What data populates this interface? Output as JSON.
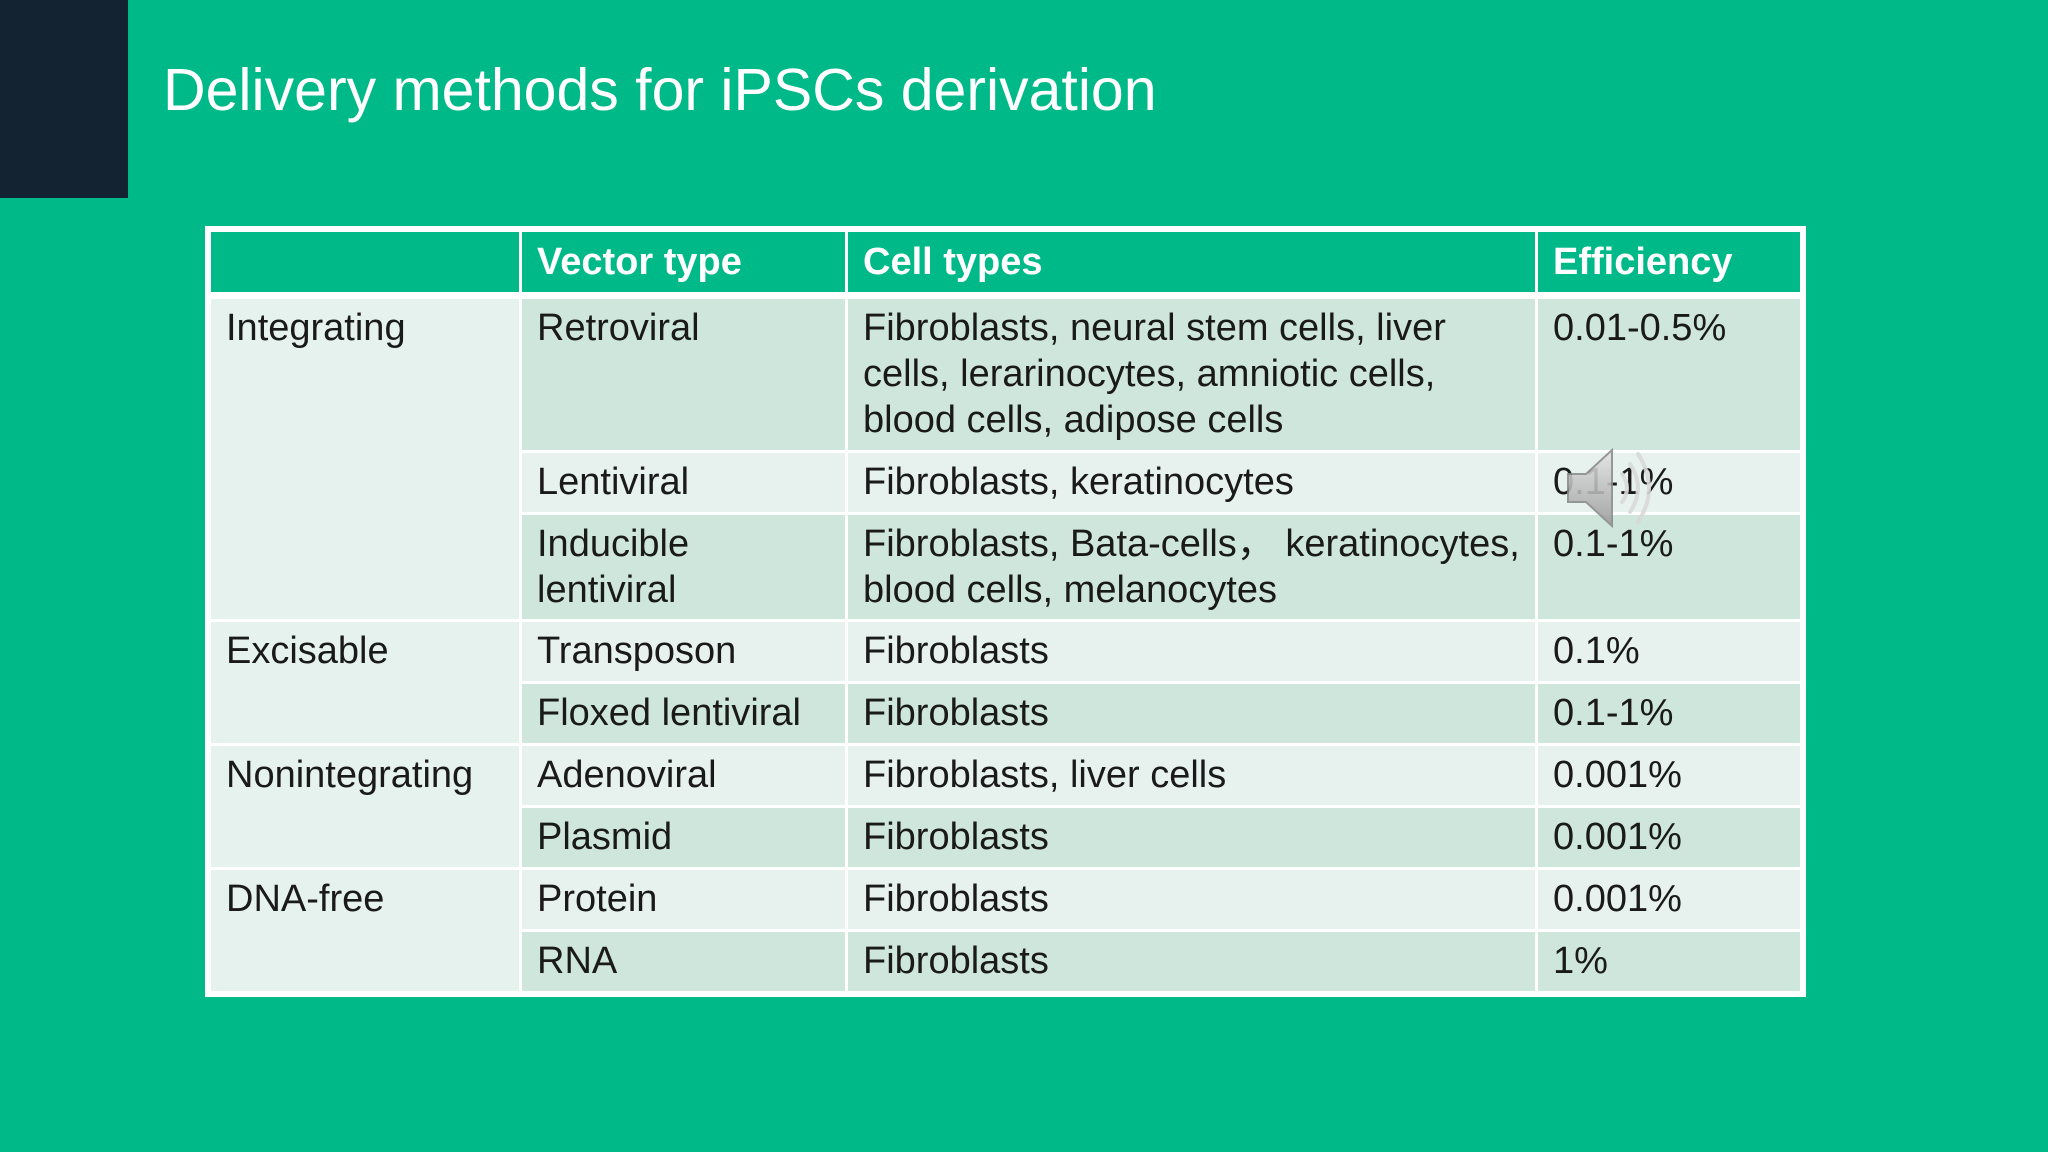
{
  "slide": {
    "title": "Delivery methods for iPSCs derivation"
  },
  "table": {
    "headers": [
      "",
      "Vector type",
      "Cell types",
      "Efficiency"
    ],
    "groups": [
      "Integrating",
      "Excisable",
      "Nonintegrating",
      "DNA-free"
    ],
    "rows": [
      {
        "vector": "Retroviral",
        "cells": "Fibroblasts, neural stem cells, liver cells, lerarinocytes, amniotic cells, blood cells, adipose cells",
        "efficiency": "0.01-0.5%"
      },
      {
        "vector": "Lentiviral",
        "cells": "Fibroblasts, keratinocytes",
        "efficiency": "0.1-1%"
      },
      {
        "vector": "Inducible lentiviral",
        "cells": "Fibroblasts, Bata-cells， keratinocytes, blood cells, melanocytes",
        "efficiency": "0.1-1%"
      },
      {
        "vector": "Transposon",
        "cells": "Fibroblasts",
        "efficiency": "0.1%"
      },
      {
        "vector": "Floxed lentiviral",
        "cells": "Fibroblasts",
        "efficiency": "0.1-1%"
      },
      {
        "vector": "Adenoviral",
        "cells": "Fibroblasts, liver cells",
        "efficiency": "0.001%"
      },
      {
        "vector": "Plasmid",
        "cells": "Fibroblasts",
        "efficiency": "0.001%"
      },
      {
        "vector": "Protein",
        "cells": "Fibroblasts",
        "efficiency": "0.001%"
      },
      {
        "vector": "RNA",
        "cells": "Fibroblasts",
        "efficiency": "1%"
      }
    ]
  },
  "audio": {
    "icon": "speaker-icon"
  },
  "colors": {
    "background": "#00B988",
    "corner": "#132332",
    "row_dark": "#CFE6DD",
    "row_light": "#E7F2EE"
  }
}
